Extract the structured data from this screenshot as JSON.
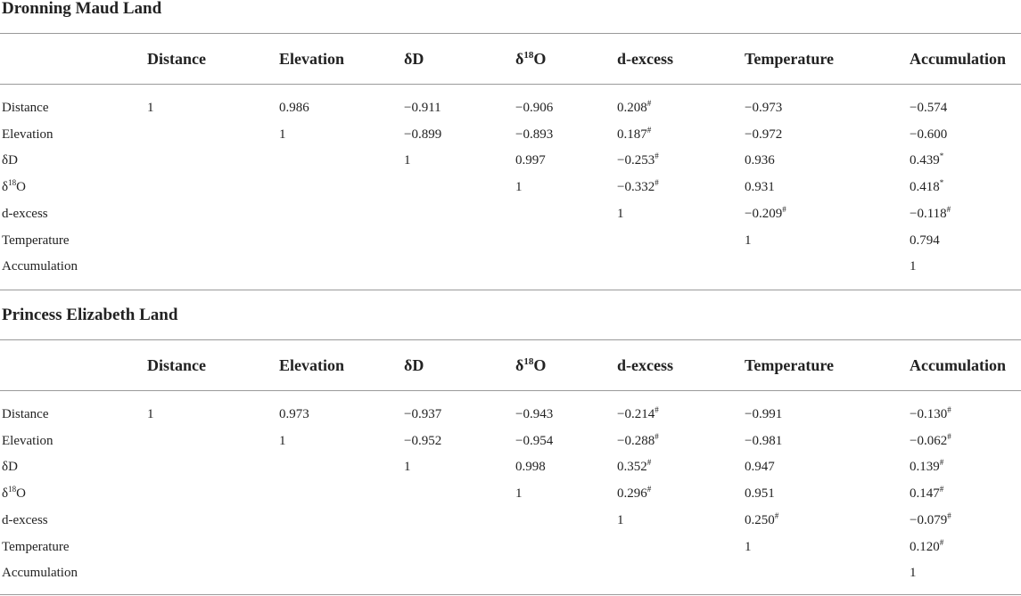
{
  "sections": [
    {
      "title": "Dronning Maud Land",
      "headers": [
        "Distance",
        "Elevation",
        "δD",
        {
          "text": "δ",
          "sup": "18",
          "after": "O"
        },
        "d-excess",
        "Temperature",
        "Accumulation"
      ],
      "rows": [
        {
          "label": "Distance",
          "cells": [
            "1",
            "0.986",
            "−0.911",
            "−0.906",
            {
              "text": "0.208",
              "sup": "#"
            },
            "−0.973",
            "−0.574"
          ]
        },
        {
          "label": "Elevation",
          "cells": [
            "1",
            "−0.899",
            "−0.893",
            {
              "text": "0.187",
              "sup": "#"
            },
            "−0.972",
            "−0.600"
          ]
        },
        {
          "label": "δD",
          "cells": [
            "1",
            "0.997",
            {
              "text": "−0.253",
              "sup": "#"
            },
            "0.936",
            {
              "text": "0.439",
              "sup": "*"
            }
          ]
        },
        {
          "label": {
            "text": "δ",
            "sup": "18",
            "after": "O"
          },
          "cells": [
            "1",
            {
              "text": "−0.332",
              "sup": "#"
            },
            "0.931",
            {
              "text": "0.418",
              "sup": "*"
            }
          ]
        },
        {
          "label": "d-excess",
          "cells": [
            "1",
            {
              "text": "−0.209",
              "sup": "#"
            },
            {
              "text": "−0.118",
              "sup": "#"
            }
          ]
        },
        {
          "label": "Temperature",
          "cells": [
            "1",
            "0.794"
          ]
        },
        {
          "label": "Accumulation",
          "cells": [
            "1"
          ]
        }
      ]
    },
    {
      "title": "Princess Elizabeth Land",
      "headers": [
        "Distance",
        "Elevation",
        "δD",
        {
          "text": "δ",
          "sup": "18",
          "after": "O"
        },
        "d-excess",
        "Temperature",
        "Accumulation"
      ],
      "rows": [
        {
          "label": "Distance",
          "cells": [
            "1",
            "0.973",
            "−0.937",
            "−0.943",
            {
              "text": "−0.214",
              "sup": "#"
            },
            "−0.991",
            {
              "text": "−0.130",
              "sup": "#"
            }
          ]
        },
        {
          "label": "Elevation",
          "cells": [
            "1",
            "−0.952",
            "−0.954",
            {
              "text": "−0.288",
              "sup": "#"
            },
            "−0.981",
            {
              "text": "−0.062",
              "sup": "#"
            }
          ]
        },
        {
          "label": "δD",
          "cells": [
            "1",
            "0.998",
            {
              "text": "0.352",
              "sup": "#"
            },
            "0.947",
            {
              "text": "0.139",
              "sup": "#"
            }
          ]
        },
        {
          "label": {
            "text": "δ",
            "sup": "18",
            "after": "O"
          },
          "cells": [
            "1",
            {
              "text": "0.296",
              "sup": "#"
            },
            "0.951",
            {
              "text": "0.147",
              "sup": "#"
            }
          ]
        },
        {
          "label": "d-excess",
          "cells": [
            "1",
            {
              "text": "0.250",
              "sup": "#"
            },
            {
              "text": "−0.079",
              "sup": "#"
            }
          ]
        },
        {
          "label": "Temperature",
          "cells": [
            "1",
            {
              "text": "0.120",
              "sup": "#"
            }
          ]
        },
        {
          "label": "Accumulation",
          "cells": [
            "1"
          ]
        }
      ]
    }
  ]
}
